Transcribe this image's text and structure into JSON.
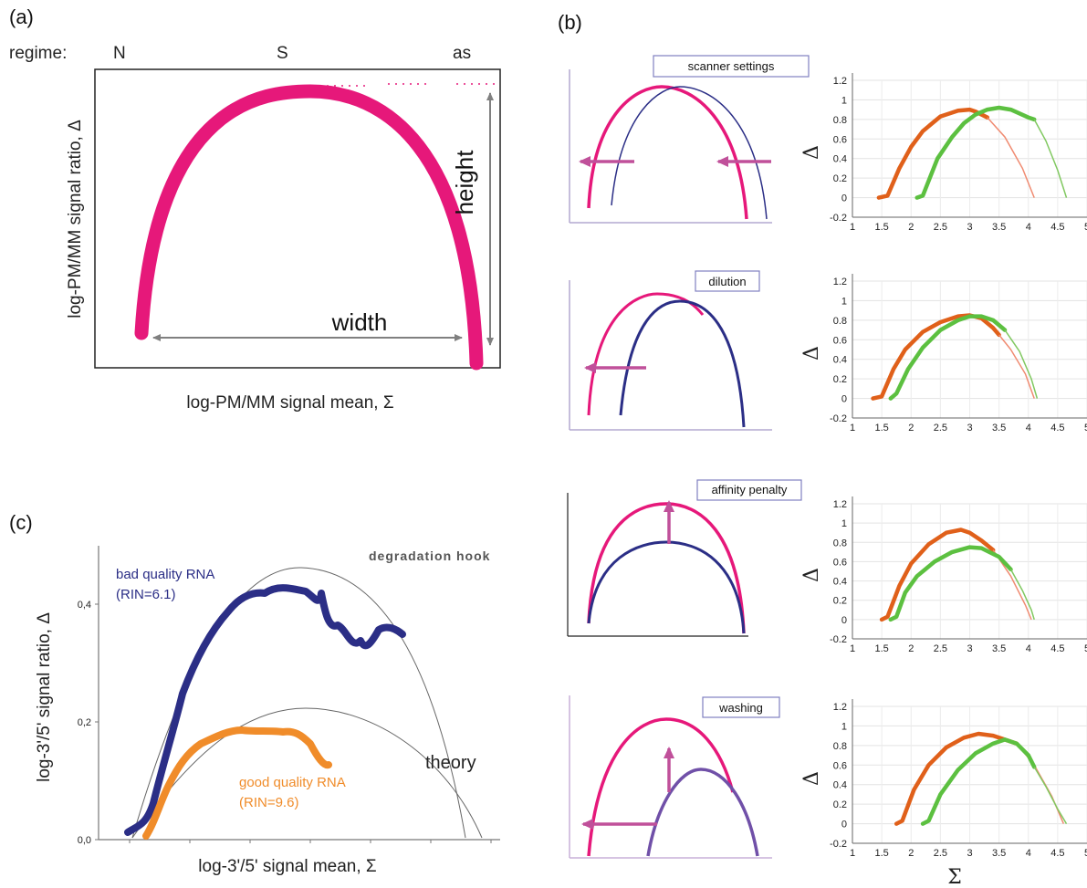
{
  "panel_labels": {
    "a": "(a)",
    "b": "(b)",
    "c": "(c)"
  },
  "panel_a": {
    "regime_label": "regime:",
    "regimes": [
      "N",
      "S",
      "as"
    ],
    "ylabel": "log-PM/MM signal ratio, Δ",
    "xlabel": "log-PM/MM signal mean, Σ",
    "height_label": "height",
    "width_label": "width",
    "colors": {
      "curve": "#e6187a",
      "arrow": "#808080",
      "dots": "#e6187a"
    }
  },
  "panel_b": {
    "schematics": [
      {
        "label": "scanner settings"
      },
      {
        "label": "dilution"
      },
      {
        "label": "affinity penalty"
      },
      {
        "label": "washing"
      }
    ],
    "colors": {
      "pink": "#e6187a",
      "blue": "#2b2e86",
      "arrow": "#c0509a",
      "orange": "#e0601a",
      "green": "#5cc040",
      "fit_orange": "#f08a70",
      "fit_green": "#80c860"
    },
    "ylabel": "Δ",
    "xlabel": "Σ",
    "y_ticks": [
      "-0.2",
      "0",
      "0.2",
      "0.4",
      "0.6",
      "0.8",
      "1",
      "1.2"
    ],
    "x_ticks": [
      "1",
      "1.5",
      "2",
      "2.5",
      "3",
      "3.5",
      "4",
      "4.5",
      "5"
    ]
  },
  "chart_data": [
    {
      "type": "line",
      "panel": "b-1",
      "xlim": [
        1,
        5
      ],
      "ylim": [
        -0.2,
        1.2
      ],
      "series": [
        {
          "color": "orange",
          "points": [
            [
              1.45,
              0
            ],
            [
              1.6,
              0.02
            ],
            [
              1.8,
              0.3
            ],
            [
              2.0,
              0.52
            ],
            [
              2.2,
              0.68
            ],
            [
              2.5,
              0.83
            ],
            [
              2.8,
              0.89
            ],
            [
              3.0,
              0.9
            ],
            [
              3.1,
              0.88
            ],
            [
              3.3,
              0.82
            ]
          ],
          "fit_to": [
            [
              3.3,
              0.82
            ],
            [
              3.6,
              0.62
            ],
            [
              3.9,
              0.3
            ],
            [
              4.1,
              0
            ]
          ]
        },
        {
          "color": "green",
          "points": [
            [
              2.1,
              0
            ],
            [
              2.2,
              0.02
            ],
            [
              2.45,
              0.4
            ],
            [
              2.7,
              0.62
            ],
            [
              2.9,
              0.76
            ],
            [
              3.1,
              0.85
            ],
            [
              3.3,
              0.9
            ],
            [
              3.5,
              0.92
            ],
            [
              3.7,
              0.9
            ],
            [
              4.0,
              0.82
            ],
            [
              4.1,
              0.8
            ]
          ],
          "fit_to": [
            [
              4.1,
              0.8
            ],
            [
              4.3,
              0.58
            ],
            [
              4.5,
              0.28
            ],
            [
              4.65,
              0
            ]
          ]
        }
      ]
    },
    {
      "type": "line",
      "panel": "b-2",
      "xlim": [
        1,
        5
      ],
      "ylim": [
        -0.2,
        1.2
      ],
      "series": [
        {
          "color": "orange",
          "points": [
            [
              1.35,
              0
            ],
            [
              1.5,
              0.02
            ],
            [
              1.7,
              0.3
            ],
            [
              1.9,
              0.5
            ],
            [
              2.2,
              0.68
            ],
            [
              2.5,
              0.78
            ],
            [
              2.8,
              0.84
            ],
            [
              3.0,
              0.85
            ],
            [
              3.2,
              0.82
            ],
            [
              3.4,
              0.72
            ],
            [
              3.5,
              0.65
            ]
          ],
          "fit_to": [
            [
              3.5,
              0.65
            ],
            [
              3.7,
              0.5
            ],
            [
              3.95,
              0.25
            ],
            [
              4.1,
              0
            ]
          ]
        },
        {
          "color": "green",
          "points": [
            [
              1.65,
              0
            ],
            [
              1.75,
              0.05
            ],
            [
              1.95,
              0.3
            ],
            [
              2.2,
              0.52
            ],
            [
              2.5,
              0.7
            ],
            [
              2.8,
              0.8
            ],
            [
              3.0,
              0.84
            ],
            [
              3.2,
              0.84
            ],
            [
              3.4,
              0.8
            ],
            [
              3.6,
              0.7
            ]
          ],
          "fit_to": [
            [
              3.6,
              0.7
            ],
            [
              3.85,
              0.48
            ],
            [
              4.05,
              0.2
            ],
            [
              4.15,
              0
            ]
          ]
        }
      ]
    },
    {
      "type": "line",
      "panel": "b-3",
      "xlim": [
        1,
        5
      ],
      "ylim": [
        -0.2,
        1.2
      ],
      "series": [
        {
          "color": "orange",
          "points": [
            [
              1.5,
              0
            ],
            [
              1.6,
              0.03
            ],
            [
              1.8,
              0.35
            ],
            [
              2.0,
              0.58
            ],
            [
              2.3,
              0.78
            ],
            [
              2.6,
              0.9
            ],
            [
              2.85,
              0.93
            ],
            [
              3.0,
              0.9
            ],
            [
              3.2,
              0.82
            ],
            [
              3.4,
              0.72
            ]
          ],
          "fit_to": [
            [
              3.4,
              0.72
            ],
            [
              3.7,
              0.45
            ],
            [
              3.95,
              0.15
            ],
            [
              4.05,
              0
            ]
          ]
        },
        {
          "color": "green",
          "points": [
            [
              1.65,
              0
            ],
            [
              1.75,
              0.03
            ],
            [
              1.9,
              0.28
            ],
            [
              2.1,
              0.45
            ],
            [
              2.4,
              0.6
            ],
            [
              2.7,
              0.7
            ],
            [
              3.0,
              0.75
            ],
            [
              3.2,
              0.74
            ],
            [
              3.5,
              0.65
            ],
            [
              3.7,
              0.52
            ]
          ],
          "fit_to": [
            [
              3.7,
              0.52
            ],
            [
              3.9,
              0.3
            ],
            [
              4.05,
              0.1
            ],
            [
              4.1,
              0
            ]
          ]
        }
      ]
    },
    {
      "type": "line",
      "panel": "b-4",
      "xlim": [
        1,
        5
      ],
      "ylim": [
        -0.2,
        1.2
      ],
      "series": [
        {
          "color": "orange",
          "points": [
            [
              1.75,
              0
            ],
            [
              1.85,
              0.03
            ],
            [
              2.05,
              0.35
            ],
            [
              2.3,
              0.6
            ],
            [
              2.6,
              0.78
            ],
            [
              2.9,
              0.88
            ],
            [
              3.15,
              0.92
            ],
            [
              3.4,
              0.9
            ],
            [
              3.6,
              0.86
            ],
            [
              3.8,
              0.82
            ]
          ],
          "fit_to": [
            [
              3.8,
              0.82
            ],
            [
              4.1,
              0.6
            ],
            [
              4.4,
              0.28
            ],
            [
              4.6,
              0
            ]
          ]
        },
        {
          "color": "green",
          "points": [
            [
              2.2,
              0
            ],
            [
              2.3,
              0.03
            ],
            [
              2.5,
              0.3
            ],
            [
              2.8,
              0.55
            ],
            [
              3.1,
              0.72
            ],
            [
              3.4,
              0.82
            ],
            [
              3.6,
              0.86
            ],
            [
              3.8,
              0.82
            ],
            [
              4.0,
              0.7
            ],
            [
              4.1,
              0.58
            ]
          ],
          "fit_to": [
            [
              4.1,
              0.58
            ],
            [
              4.3,
              0.38
            ],
            [
              4.5,
              0.15
            ],
            [
              4.65,
              0
            ]
          ]
        }
      ]
    },
    {
      "type": "line",
      "panel": "c",
      "ylim": [
        0,
        0.5
      ],
      "y_ticks": [
        "0,0",
        "0,2",
        "0,4"
      ],
      "ylabel": "log-3'/5' signal ratio, Δ",
      "xlabel": "log-3'/5' signal mean, Σ",
      "annotations": [
        "degradation hook",
        "theory"
      ],
      "series": [
        {
          "name": "bad quality RNA",
          "detail": "(RIN=6.1)",
          "color": "#2b2e86"
        },
        {
          "name": "good quality RNA",
          "detail": "(RIN=9.6)",
          "color": "#f08c2a"
        }
      ]
    }
  ]
}
